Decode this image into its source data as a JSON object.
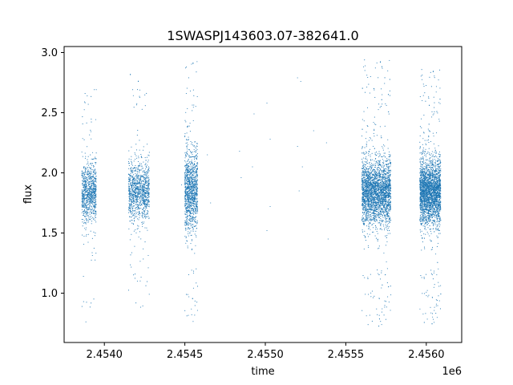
{
  "chart_data": {
    "type": "scatter",
    "title": "1SWASPJ143603.07-382641.0",
    "xlabel": "time",
    "ylabel": "flux",
    "x_offset_label": "1e6",
    "xlim": [
      2453750,
      2456220
    ],
    "ylim": [
      0.59,
      3.05
    ],
    "x_ticks": [
      2454000,
      2454500,
      2455000,
      2455500,
      2456000
    ],
    "x_tick_labels": [
      "2.4540",
      "2.4545",
      "2.4550",
      "2.4555",
      "2.4560"
    ],
    "y_ticks": [
      1.0,
      1.5,
      2.0,
      2.5,
      3.0
    ],
    "y_tick_labels": [
      "1.0",
      "1.5",
      "2.0",
      "2.5",
      "3.0"
    ],
    "grid": false,
    "legend": "none",
    "marker_color": "#1f77b4",
    "series": [
      {
        "clusters": [
          {
            "x_range": [
              2453860,
              2453950
            ],
            "y_center": 1.83,
            "y_spread": 0.12,
            "y_min": 0.72,
            "y_max": 2.72,
            "points": 900
          },
          {
            "x_range": [
              2454150,
              2454280
            ],
            "y_center": 1.84,
            "y_spread": 0.12,
            "y_min": 0.86,
            "y_max": 2.82,
            "points": 1100
          },
          {
            "x_range": [
              2454500,
              2454580
            ],
            "y_center": 1.86,
            "y_spread": 0.16,
            "y_min": 0.7,
            "y_max": 2.93,
            "points": 1200
          },
          {
            "x_range": [
              2455600,
              2455780
            ],
            "y_center": 1.84,
            "y_spread": 0.13,
            "y_min": 0.7,
            "y_max": 2.94,
            "points": 3000
          },
          {
            "x_range": [
              2455960,
              2456090
            ],
            "y_center": 1.84,
            "y_spread": 0.13,
            "y_min": 0.72,
            "y_max": 2.86,
            "points": 2800
          }
        ],
        "sparse_points": [
          [
            2454640,
            2.15
          ],
          [
            2454660,
            1.75
          ],
          [
            2454480,
            1.9
          ],
          [
            2454840,
            2.18
          ],
          [
            2454850,
            1.96
          ],
          [
            2454930,
            2.49
          ],
          [
            2454920,
            2.05
          ],
          [
            2455010,
            2.58
          ],
          [
            2455010,
            1.52
          ],
          [
            2455030,
            1.72
          ],
          [
            2455030,
            2.28
          ],
          [
            2455200,
            2.79
          ],
          [
            2455220,
            2.76
          ],
          [
            2455200,
            2.22
          ],
          [
            2455210,
            1.85
          ],
          [
            2455230,
            2.05
          ],
          [
            2455300,
            2.35
          ],
          [
            2455380,
            2.25
          ],
          [
            2455390,
            1.7
          ],
          [
            2455390,
            1.45
          ]
        ]
      }
    ]
  }
}
